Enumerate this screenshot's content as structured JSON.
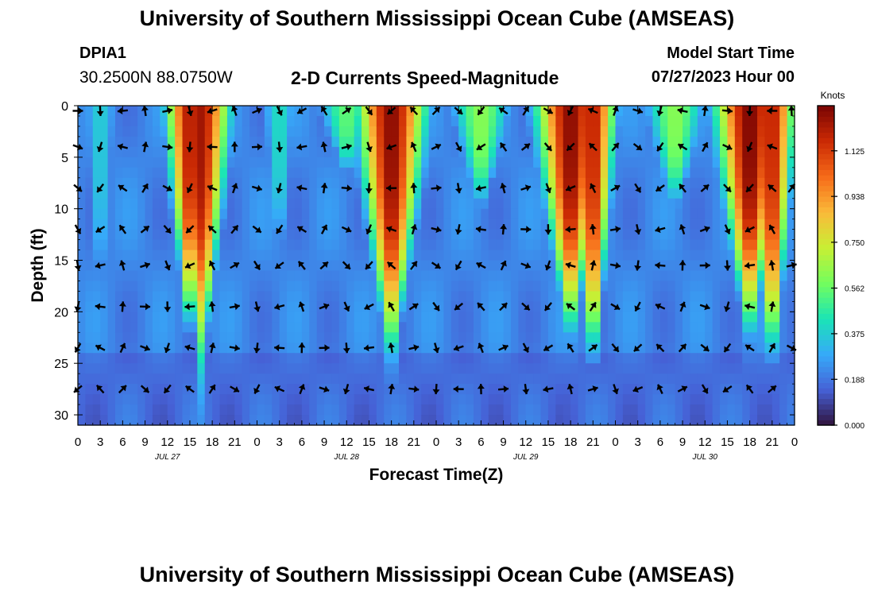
{
  "page": {
    "title_top": "University of Southern Mississippi Ocean Cube (AMSEAS)",
    "title_bottom": "University of Southern Mississippi Ocean Cube (AMSEAS)",
    "station_id": "DPIA1",
    "coordinates": "30.2500N  88.0750W",
    "plot_title": "2-D Currents Speed-Magnitude",
    "model_start_label": "Model Start Time",
    "model_start_value": "07/27/2023 Hour 00"
  },
  "chart_data": {
    "type": "heatmap",
    "title": "2-D Currents Speed-Magnitude",
    "xlabel": "Forecast Time(Z)",
    "ylabel": "Depth (ft)",
    "x_range_hours": [
      0,
      96
    ],
    "ylim": [
      0,
      31
    ],
    "x_tick_labels": [
      "0",
      "3",
      "6",
      "9",
      "12",
      "15",
      "18",
      "21",
      "0",
      "3",
      "6",
      "9",
      "12",
      "15",
      "18",
      "21",
      "0",
      "3",
      "6",
      "9",
      "12",
      "15",
      "18",
      "21",
      "0",
      "3",
      "6",
      "9",
      "12",
      "15",
      "18",
      "21",
      "0"
    ],
    "y_ticks": [
      0,
      5,
      10,
      15,
      20,
      25,
      30
    ],
    "y_tick_labels": [
      "0",
      "5",
      "10",
      "15",
      "20",
      "25",
      "30"
    ],
    "date_labels": [
      {
        "label": "JUL 27",
        "hour": 12
      },
      {
        "label": "JUL 28",
        "hour": 36
      },
      {
        "label": "JUL 29",
        "hour": 60
      },
      {
        "label": "JUL 30",
        "hour": 84
      }
    ],
    "colorbar": {
      "unit_label": "Knots",
      "range": [
        0,
        1.31
      ],
      "tick_values": [
        0.0,
        0.188,
        0.375,
        0.562,
        0.75,
        0.938,
        1.125
      ],
      "tick_labels": [
        "0.000",
        "0.188",
        "0.375",
        "0.562",
        "0.750",
        "0.938",
        "1.125"
      ],
      "colormap": [
        "#30123b",
        "#4661d6",
        "#36aaf9",
        "#1ae4b6",
        "#72fe5e",
        "#c8ef34",
        "#faba39",
        "#f66b19",
        "#cb2a04",
        "#7a0403"
      ]
    },
    "speed_peaks": [
      {
        "hour": 15,
        "speed": 1.22,
        "surface_halfwidth_h": 3.2,
        "depth_extent_ft": 20
      },
      {
        "hour": 16.5,
        "speed": 1.24,
        "surface_halfwidth_h": 3.8,
        "depth_extent_ft": 22
      },
      {
        "hour": 42,
        "speed": 1.28,
        "surface_halfwidth_h": 4.6,
        "depth_extent_ft": 22
      },
      {
        "hour": 54,
        "speed": 0.62,
        "surface_halfwidth_h": 4.2,
        "depth_extent_ft": 9
      },
      {
        "hour": 66,
        "speed": 1.28,
        "surface_halfwidth_h": 4.6,
        "depth_extent_ft": 20
      },
      {
        "hour": 69,
        "speed": 1.2,
        "surface_halfwidth_h": 3,
        "depth_extent_ft": 23
      },
      {
        "hour": 80,
        "speed": 0.62,
        "surface_halfwidth_h": 4.2,
        "depth_extent_ft": 9
      },
      {
        "hour": 90,
        "speed": 1.3,
        "surface_halfwidth_h": 4.6,
        "depth_extent_ft": 20
      },
      {
        "hour": 93,
        "speed": 1.2,
        "surface_halfwidth_h": 3,
        "depth_extent_ft": 23
      },
      {
        "hour": 36,
        "speed": 0.55,
        "surface_halfwidth_h": 4,
        "depth_extent_ft": 6
      },
      {
        "hour": 27,
        "speed": 0.42,
        "surface_halfwidth_h": 2.5,
        "depth_extent_ft": 14
      },
      {
        "hour": 3,
        "speed": 0.38,
        "surface_halfwidth_h": 2.5,
        "depth_extent_ft": 18
      }
    ],
    "vector_depths_ft": [
      0.5,
      4,
      8,
      12,
      15.5,
      19.5,
      23.5,
      27.5
    ],
    "vector_hours": [
      0,
      3,
      6,
      9,
      12,
      15,
      18,
      21,
      24,
      27,
      30,
      33,
      36,
      39,
      42,
      45,
      48,
      51,
      54,
      57,
      60,
      63,
      66,
      69,
      72,
      75,
      78,
      81,
      84,
      87,
      90,
      93,
      96
    ]
  }
}
